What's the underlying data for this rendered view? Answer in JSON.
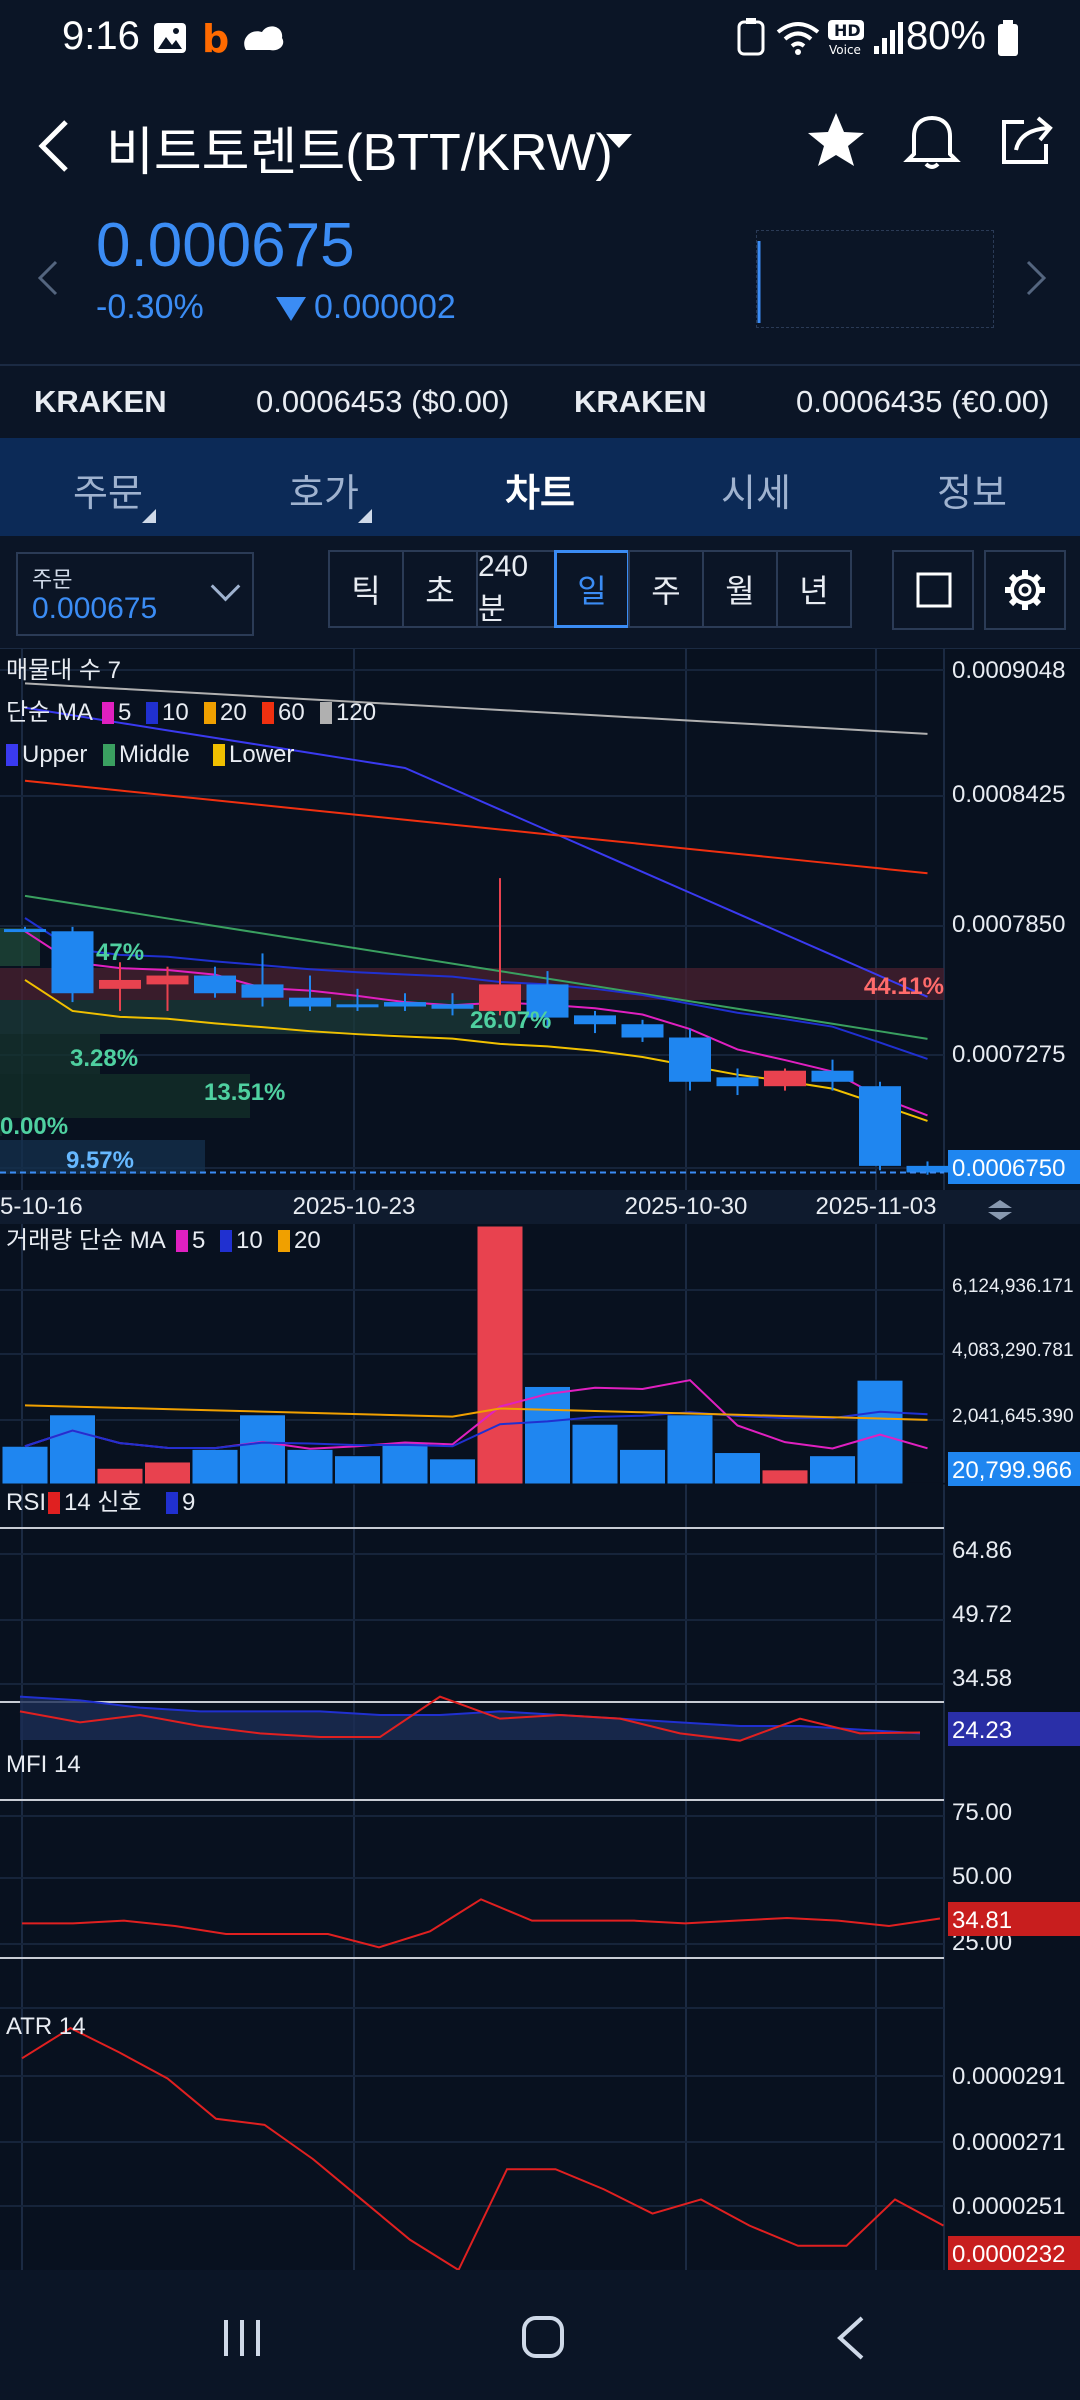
{
  "status": {
    "time": "9:16",
    "battery": "80%",
    "icons": [
      "gallery-icon",
      "b-app-icon",
      "cloud-app-icon",
      "nfc-icon",
      "wifi-icon",
      "hd-voice-icon",
      "signal-icon",
      "battery-icon"
    ]
  },
  "header": {
    "title": "비트토렌트(BTT/KRW)",
    "back_icon": "chevron-left-icon",
    "icons": [
      "star-icon",
      "bell-icon",
      "share-icon"
    ]
  },
  "ticker": {
    "price": "0.000675",
    "change_pct": "-0.30%",
    "change_abs": "0.000002",
    "direction": "down"
  },
  "exchanges": [
    {
      "name": "KRAKEN",
      "value": "0.0006453 ($0.00)"
    },
    {
      "name": "KRAKEN",
      "value": "0.0006435 (€0.00)"
    }
  ],
  "tabs": [
    {
      "label": "주문",
      "active": false
    },
    {
      "label": "호가",
      "active": false
    },
    {
      "label": "차트",
      "active": true
    },
    {
      "label": "시세",
      "active": false
    },
    {
      "label": "정보",
      "active": false
    }
  ],
  "order_box": {
    "label": "주문",
    "value": "0.000675"
  },
  "periods": [
    {
      "label": "틱",
      "active": false
    },
    {
      "label": "초",
      "active": false
    },
    {
      "label": "240분",
      "active": false
    },
    {
      "label": "일",
      "active": true
    },
    {
      "label": "주",
      "active": false
    },
    {
      "label": "월",
      "active": false
    },
    {
      "label": "년",
      "active": false
    }
  ],
  "colors": {
    "up": "#e8424f",
    "down": "#1f86f0",
    "accent": "#3b8cf4",
    "tab_bg": "#0c2a57"
  },
  "chart_data": [
    {
      "type": "candlestick",
      "legend": {
        "volume_profile": "매물대 수 7",
        "ma_label": "단순 MA",
        "ma_periods": [
          {
            "label": "5",
            "color": "#e020c0"
          },
          {
            "label": "10",
            "color": "#2030d0"
          },
          {
            "label": "20",
            "color": "#f0a000"
          },
          {
            "label": "60",
            "color": "#f03010"
          },
          {
            "label": "120",
            "color": "#b0b0b0"
          }
        ],
        "bands": [
          {
            "label": "Upper",
            "color": "#3a3af0"
          },
          {
            "label": "Middle",
            "color": "#3aa060"
          },
          {
            "label": "Lower",
            "color": "#f0c000"
          }
        ]
      },
      "y_ticks": [
        "0.0009048",
        "0.0008425",
        "0.0007850",
        "0.0007275"
      ],
      "current_price_label": "0.0006750",
      "x_ticks": [
        "5-10-16",
        "2025-10-23",
        "2025-10-30",
        "2025-11-03"
      ],
      "profile_labels": [
        "47%",
        "44.11%",
        "26.07%",
        "3.28%",
        "13.51%",
        "0.00%",
        "9.57%"
      ],
      "candles": [
        {
          "o": 0.000785,
          "h": 0.000786,
          "l": 0.000784,
          "c": 0.000784
        },
        {
          "o": 0.000784,
          "h": 0.000786,
          "l": 0.000752,
          "c": 0.000756
        },
        {
          "o": 0.000758,
          "h": 0.00077,
          "l": 0.000748,
          "c": 0.000762
        },
        {
          "o": 0.00076,
          "h": 0.000768,
          "l": 0.000748,
          "c": 0.000764
        },
        {
          "o": 0.000764,
          "h": 0.000768,
          "l": 0.000754,
          "c": 0.000756
        },
        {
          "o": 0.00076,
          "h": 0.000774,
          "l": 0.00075,
          "c": 0.000754
        },
        {
          "o": 0.000754,
          "h": 0.000764,
          "l": 0.000748,
          "c": 0.00075
        },
        {
          "o": 0.000751,
          "h": 0.000758,
          "l": 0.000748,
          "c": 0.00075
        },
        {
          "o": 0.000752,
          "h": 0.000756,
          "l": 0.000748,
          "c": 0.00075
        },
        {
          "o": 0.000751,
          "h": 0.000756,
          "l": 0.000746,
          "c": 0.000749
        },
        {
          "o": 0.000748,
          "h": 0.000808,
          "l": 0.000746,
          "c": 0.00076
        },
        {
          "o": 0.00076,
          "h": 0.000766,
          "l": 0.00074,
          "c": 0.000745
        },
        {
          "o": 0.000746,
          "h": 0.000748,
          "l": 0.000738,
          "c": 0.000742
        },
        {
          "o": 0.000742,
          "h": 0.000744,
          "l": 0.000734,
          "c": 0.000736
        },
        {
          "o": 0.000736,
          "h": 0.00074,
          "l": 0.000712,
          "c": 0.000716
        },
        {
          "o": 0.000718,
          "h": 0.000722,
          "l": 0.00071,
          "c": 0.000714
        },
        {
          "o": 0.000714,
          "h": 0.000722,
          "l": 0.000712,
          "c": 0.000721
        },
        {
          "o": 0.000721,
          "h": 0.000726,
          "l": 0.000712,
          "c": 0.000716
        },
        {
          "o": 0.000714,
          "h": 0.000716,
          "l": 0.000676,
          "c": 0.000678
        },
        {
          "o": 0.000678,
          "h": 0.00068,
          "l": 0.000674,
          "c": 0.000675
        }
      ]
    },
    {
      "type": "bar",
      "title": "거래량 단순 MA",
      "ma_periods": [
        {
          "label": "5",
          "color": "#e020c0"
        },
        {
          "label": "10",
          "color": "#2030d0"
        },
        {
          "label": "20",
          "color": "#f0a000"
        }
      ],
      "y_ticks": [
        "6,124,936.171",
        "4,083,290.781",
        "2,041,645.390"
      ],
      "current_label": "20,799.966",
      "values": [
        1200000,
        2200000,
        500000,
        700000,
        1100000,
        2200000,
        1100000,
        900000,
        1300000,
        800000,
        8200000,
        3100000,
        1900000,
        1100000,
        2200000,
        1000000,
        450000,
        900000,
        3300000,
        20799.966
      ]
    },
    {
      "type": "line",
      "title": "RSI",
      "legend": [
        {
          "label": "14 신호",
          "color": "#e02020"
        },
        {
          "label": "9",
          "color": "#2030d0"
        }
      ],
      "y_ticks": [
        "64.86",
        "49.72",
        "34.58"
      ],
      "current_label": "24.23",
      "rsi": [
        30,
        27,
        29,
        26,
        24,
        23,
        23,
        34,
        28,
        29,
        28,
        24,
        22,
        28,
        24,
        24.23
      ],
      "signal": [
        34,
        33,
        31,
        30,
        30,
        30,
        29,
        29,
        30,
        29,
        28,
        27,
        26,
        26,
        25,
        24
      ]
    },
    {
      "type": "line",
      "title": "MFI 14",
      "y_ticks": [
        "75.00",
        "50.00",
        "25.00"
      ],
      "current_label": "34.81",
      "values": [
        33,
        33,
        34,
        32,
        29,
        29,
        29,
        24,
        30,
        42,
        34,
        34,
        34,
        33,
        34,
        35,
        34,
        32,
        34.81
      ]
    },
    {
      "type": "line",
      "title": "ATR 14",
      "y_ticks": [
        "0.0000291",
        "0.0000271",
        "0.0000251"
      ],
      "current_label": "0.0000232",
      "values": [
        3.15e-05,
        3.3e-05,
        3.18e-05,
        3.05e-05,
        2.85e-05,
        2.82e-05,
        2.65e-05,
        2.45e-05,
        2.25e-05,
        2.1e-05,
        2.6e-05,
        2.6e-05,
        2.5e-05,
        2.38e-05,
        2.45e-05,
        2.32e-05,
        2.22e-05,
        2.22e-05,
        2.45e-05,
        2.32e-05
      ]
    }
  ]
}
